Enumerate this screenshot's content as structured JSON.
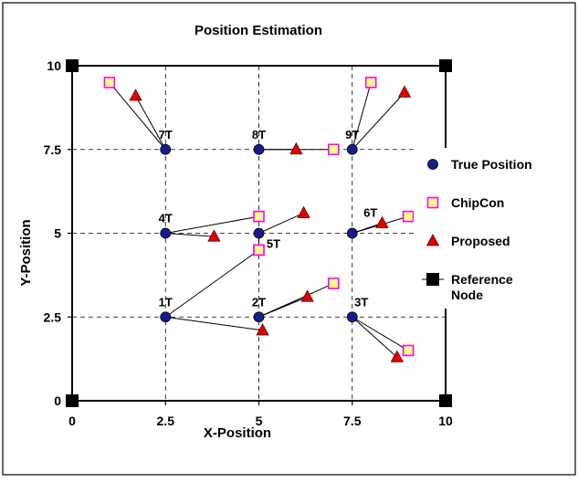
{
  "chart_data": {
    "type": "scatter",
    "title": "Position Estimation",
    "xlabel": "X-Position",
    "ylabel": "Y-Position",
    "xlim": [
      0,
      10
    ],
    "ylim": [
      0,
      10
    ],
    "x_ticks": [
      "0",
      "2.5",
      "5",
      "7.5",
      "10"
    ],
    "y_ticks": [
      "0",
      "2.5",
      "5",
      "7.5",
      "10"
    ],
    "grid": true,
    "grid_style": "dashed",
    "legend_position": "right",
    "series": [
      {
        "name": "True Position",
        "marker": "circle",
        "color": "#1a1a8c",
        "points": [
          {
            "label": "1T",
            "x": 2.5,
            "y": 2.5
          },
          {
            "label": "2T",
            "x": 5.0,
            "y": 2.5
          },
          {
            "label": "3T",
            "x": 7.5,
            "y": 2.5
          },
          {
            "label": "4T",
            "x": 2.5,
            "y": 5.0
          },
          {
            "label": "5T",
            "x": 5.0,
            "y": 5.0
          },
          {
            "label": "6T",
            "x": 7.5,
            "y": 5.0
          },
          {
            "label": "7T",
            "x": 2.5,
            "y": 7.5
          },
          {
            "label": "8T",
            "x": 5.0,
            "y": 7.5
          },
          {
            "label": "9T",
            "x": 7.5,
            "y": 7.5
          }
        ]
      },
      {
        "name": "ChipCon",
        "marker": "square",
        "color": "#ffff80",
        "edge_color": "#ff00ff",
        "points": [
          {
            "x": 5.0,
            "y": 4.5
          },
          {
            "x": 7.0,
            "y": 3.5
          },
          {
            "x": 9.0,
            "y": 1.5
          },
          {
            "x": 5.0,
            "y": 5.5
          },
          {
            "x": 5.0,
            "y": 4.5
          },
          {
            "x": 9.0,
            "y": 5.5
          },
          {
            "x": 1.0,
            "y": 9.5
          },
          {
            "x": 7.0,
            "y": 7.5
          },
          {
            "x": 8.0,
            "y": 9.5
          }
        ]
      },
      {
        "name": "Proposed",
        "marker": "triangle",
        "color": "#e00000",
        "points": [
          {
            "x": 5.1,
            "y": 2.1
          },
          {
            "x": 6.3,
            "y": 3.1
          },
          {
            "x": 8.7,
            "y": 1.3
          },
          {
            "x": 3.8,
            "y": 4.9
          },
          {
            "x": 6.2,
            "y": 5.6
          },
          {
            "x": 8.3,
            "y": 5.3
          },
          {
            "x": 1.7,
            "y": 9.1
          },
          {
            "x": 6.0,
            "y": 7.5
          },
          {
            "x": 8.9,
            "y": 9.2
          }
        ]
      },
      {
        "name": "Reference Node",
        "marker": "square",
        "color": "#000000",
        "points": [
          {
            "x": 0,
            "y": 0
          },
          {
            "x": 10,
            "y": 0
          },
          {
            "x": 0,
            "y": 10
          },
          {
            "x": 10,
            "y": 10
          }
        ]
      }
    ],
    "legend": [
      {
        "lines": [
          "True Position"
        ],
        "marker": "circle"
      },
      {
        "lines": [
          "ChipCon"
        ],
        "marker": "square-chipcon"
      },
      {
        "lines": [
          "Proposed"
        ],
        "marker": "triangle"
      },
      {
        "lines": [
          "Reference",
          "Node"
        ],
        "marker": "square-ref"
      }
    ]
  }
}
